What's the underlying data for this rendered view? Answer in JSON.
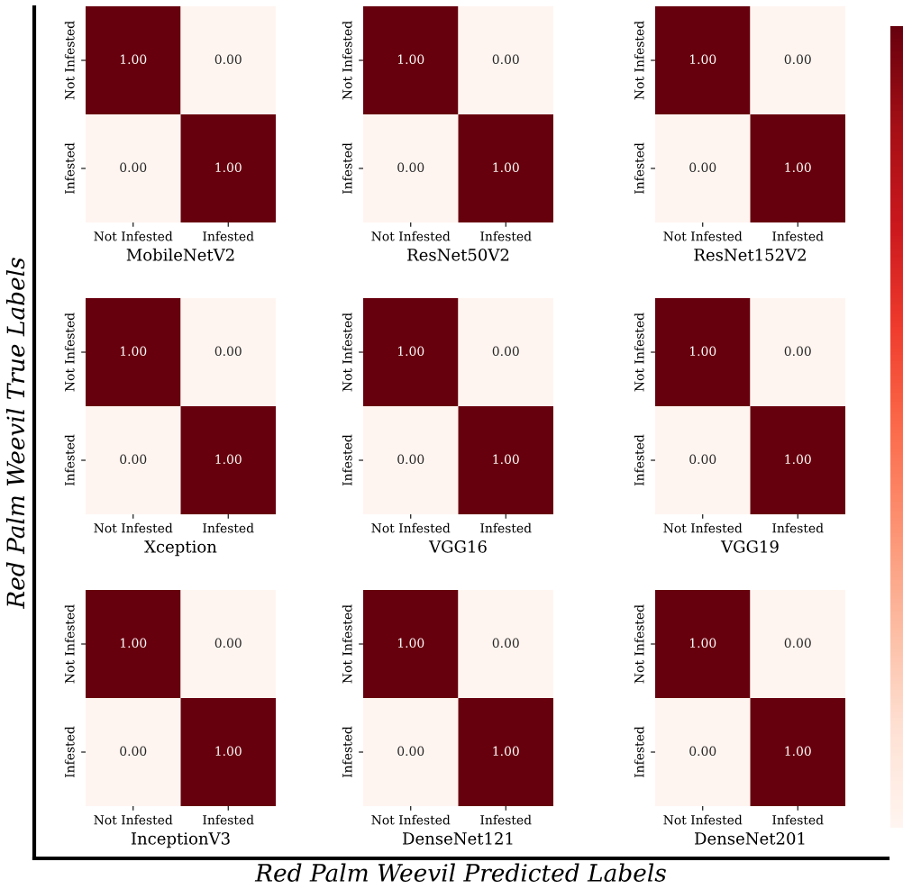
{
  "chart_data": [
    {
      "type": "heatmap",
      "xlabel": "MobileNetV2",
      "categories": [
        "Not Infested",
        "Infested"
      ],
      "y_categories": [
        "Not Infested",
        "Infested"
      ],
      "cells": [
        [
          1.0,
          0.0
        ],
        [
          0.0,
          1.0
        ]
      ],
      "cell_labels": [
        [
          "1.00",
          "0.00"
        ],
        [
          "0.00",
          "1.00"
        ]
      ]
    },
    {
      "type": "heatmap",
      "xlabel": "ResNet50V2",
      "categories": [
        "Not Infested",
        "Infested"
      ],
      "y_categories": [
        "Not Infested",
        "Infested"
      ],
      "cells": [
        [
          1.0,
          0.0
        ],
        [
          0.0,
          1.0
        ]
      ],
      "cell_labels": [
        [
          "1.00",
          "0.00"
        ],
        [
          "0.00",
          "1.00"
        ]
      ]
    },
    {
      "type": "heatmap",
      "xlabel": "ResNet152V2",
      "categories": [
        "Not Infested",
        "Infested"
      ],
      "y_categories": [
        "Not Infested",
        "Infested"
      ],
      "cells": [
        [
          1.0,
          0.0
        ],
        [
          0.0,
          1.0
        ]
      ],
      "cell_labels": [
        [
          "1.00",
          "0.00"
        ],
        [
          "0.00",
          "1.00"
        ]
      ]
    },
    {
      "type": "heatmap",
      "xlabel": "Xception",
      "categories": [
        "Not Infested",
        "Infested"
      ],
      "y_categories": [
        "Not Infested",
        "Infested"
      ],
      "cells": [
        [
          1.0,
          0.0
        ],
        [
          0.0,
          1.0
        ]
      ],
      "cell_labels": [
        [
          "1.00",
          "0.00"
        ],
        [
          "0.00",
          "1.00"
        ]
      ]
    },
    {
      "type": "heatmap",
      "xlabel": "VGG16",
      "categories": [
        "Not Infested",
        "Infested"
      ],
      "y_categories": [
        "Not Infested",
        "Infested"
      ],
      "cells": [
        [
          1.0,
          0.0
        ],
        [
          0.0,
          1.0
        ]
      ],
      "cell_labels": [
        [
          "1.00",
          "0.00"
        ],
        [
          "0.00",
          "1.00"
        ]
      ]
    },
    {
      "type": "heatmap",
      "xlabel": "VGG19",
      "categories": [
        "Not Infested",
        "Infested"
      ],
      "y_categories": [
        "Not Infested",
        "Infested"
      ],
      "cells": [
        [
          1.0,
          0.0
        ],
        [
          0.0,
          1.0
        ]
      ],
      "cell_labels": [
        [
          "1.00",
          "0.00"
        ],
        [
          "0.00",
          "1.00"
        ]
      ]
    },
    {
      "type": "heatmap",
      "xlabel": "InceptionV3",
      "categories": [
        "Not Infested",
        "Infested"
      ],
      "y_categories": [
        "Not Infested",
        "Infested"
      ],
      "cells": [
        [
          1.0,
          0.0
        ],
        [
          0.0,
          1.0
        ]
      ],
      "cell_labels": [
        [
          "1.00",
          "0.00"
        ],
        [
          "0.00",
          "1.00"
        ]
      ]
    },
    {
      "type": "heatmap",
      "xlabel": "DenseNet121",
      "categories": [
        "Not Infested",
        "Infested"
      ],
      "y_categories": [
        "Not Infested",
        "Infested"
      ],
      "cells": [
        [
          1.0,
          0.0
        ],
        [
          0.0,
          1.0
        ]
      ],
      "cell_labels": [
        [
          "1.00",
          "0.00"
        ],
        [
          "0.00",
          "1.00"
        ]
      ]
    },
    {
      "type": "heatmap",
      "xlabel": "DenseNet201",
      "categories": [
        "Not Infested",
        "Infested"
      ],
      "y_categories": [
        "Not Infested",
        "Infested"
      ],
      "cells": [
        [
          1.0,
          0.0
        ],
        [
          0.0,
          1.0
        ]
      ],
      "cell_labels": [
        [
          "1.00",
          "0.00"
        ],
        [
          "0.00",
          "1.00"
        ]
      ]
    },
    {
      "type": "other",
      "xlabel": "Red Palm Weevil Predicted Labels",
      "ylabel": "Red Palm Weevil True Labels"
    }
  ]
}
